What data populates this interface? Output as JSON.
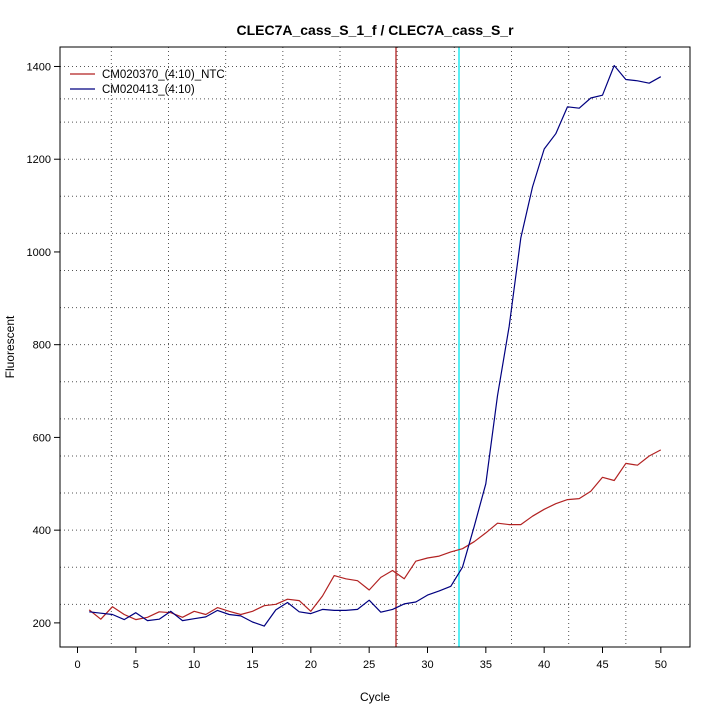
{
  "chart_data": {
    "type": "line",
    "title": "CLEC7A_cass_S_1_f / CLEC7A_cass_S_r",
    "xlabel": "Cycle",
    "ylabel": "Fluorescent",
    "xlim": [
      -1.5,
      52.5
    ],
    "ylim": [
      148,
      1442
    ],
    "x_ticks": [
      0,
      5,
      10,
      15,
      20,
      25,
      30,
      35,
      40,
      45,
      50
    ],
    "y_ticks": [
      200,
      400,
      600,
      800,
      1000,
      1200,
      1400
    ],
    "grid": "dotted",
    "legend_position": "top-left",
    "x_grid": [
      2.9,
      7.8,
      12.7,
      17.6,
      22.5,
      27.4,
      32.3,
      37.2,
      42.1,
      47
    ],
    "y_grid": [
      240,
      320,
      400,
      480,
      560,
      640,
      720,
      800,
      880,
      960,
      1040,
      1120,
      1200,
      1280,
      1330,
      1400
    ],
    "threshold_lines": [
      {
        "x": 27.3,
        "color": "#b22222"
      },
      {
        "x": 32.7,
        "color": "#00e5ee"
      }
    ],
    "series": [
      {
        "name": "CM020370_(4:10)_NTC",
        "color": "#b22222",
        "x": [
          1,
          2,
          3,
          4,
          5,
          6,
          7,
          8,
          9,
          10,
          11,
          12,
          13,
          14,
          15,
          16,
          17,
          18,
          19,
          20,
          21,
          22,
          23,
          24,
          25,
          26,
          27,
          28,
          29,
          30,
          31,
          32,
          33,
          34,
          35,
          36,
          37,
          38,
          39,
          40,
          41,
          42,
          43,
          44,
          45,
          46,
          47,
          48,
          49,
          50
        ],
        "values": [
          228,
          208,
          235,
          218,
          207,
          212,
          224,
          222,
          212,
          225,
          218,
          233,
          225,
          218,
          225,
          237,
          240,
          251,
          248,
          225,
          258,
          302,
          295,
          291,
          271,
          298,
          313,
          295,
          333,
          340,
          344,
          353,
          360,
          375,
          394,
          415,
          412,
          412,
          430,
          445,
          457,
          466,
          468,
          484,
          514,
          507,
          544,
          540,
          560,
          573
        ]
      },
      {
        "name": "CM020413_(4:10)",
        "color": "#000080",
        "x": [
          1,
          2,
          3,
          4,
          5,
          6,
          7,
          8,
          9,
          10,
          11,
          12,
          13,
          14,
          15,
          16,
          17,
          18,
          19,
          20,
          21,
          22,
          23,
          24,
          25,
          26,
          27,
          28,
          29,
          30,
          31,
          32,
          33,
          34,
          35,
          36,
          37,
          38,
          39,
          40,
          41,
          42,
          43,
          44,
          45,
          46,
          47,
          48,
          49,
          50
        ],
        "values": [
          224,
          221,
          218,
          207,
          222,
          205,
          208,
          225,
          205,
          209,
          213,
          227,
          218,
          215,
          202,
          193,
          228,
          244,
          224,
          220,
          229,
          227,
          227,
          229,
          249,
          223,
          229,
          241,
          245,
          260,
          269,
          279,
          320,
          408,
          500,
          690,
          840,
          1030,
          1140,
          1222,
          1255,
          1313,
          1310,
          1332,
          1338,
          1402,
          1372,
          1369,
          1364,
          1378
        ]
      }
    ]
  }
}
